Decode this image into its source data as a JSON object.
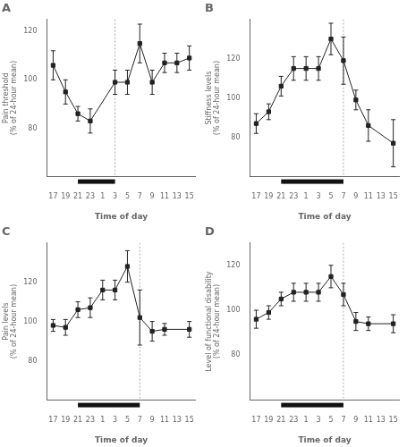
{
  "chart_data": [
    {
      "type": "line",
      "title": "A",
      "xlabel": "Time of day",
      "ylabel": "Pain threshold\n(% of 24-hour mean)",
      "categories": [
        "17",
        "19",
        "21",
        "23",
        "1",
        "3",
        "5",
        "7",
        "9",
        "11",
        "13",
        "15"
      ],
      "values": [
        106,
        95,
        86,
        83,
        null,
        99,
        99,
        115,
        99,
        107,
        107,
        109
      ],
      "errors": [
        6,
        5,
        3,
        5,
        null,
        5,
        5,
        8,
        5,
        4,
        4,
        5
      ],
      "vline": "3",
      "sleep_bar": [
        "21",
        "3"
      ],
      "ylim": [
        60,
        125
      ],
      "yticks": [
        80,
        100,
        120
      ],
      "grid": false,
      "color": "#222222",
      "marker": "square"
    },
    {
      "type": "line",
      "title": "B",
      "xlabel": "Time of day",
      "ylabel": "Stiffness levels\n(% of 24-hour mean)",
      "categories": [
        "17",
        "19",
        "21",
        "23",
        "1",
        "3",
        "5",
        "7",
        "9",
        "11",
        "13",
        "15"
      ],
      "values": [
        87,
        93,
        106,
        115,
        115,
        115,
        130,
        119,
        99,
        86,
        null,
        77
      ],
      "errors": [
        5,
        4,
        5,
        6,
        6,
        6,
        8,
        12,
        5,
        8,
        null,
        12
      ],
      "vline": "7",
      "sleep_bar": [
        "21",
        "7"
      ],
      "ylim": [
        60,
        140
      ],
      "yticks": [
        80,
        100,
        120
      ],
      "grid": false,
      "color": "#222222",
      "marker": "square"
    },
    {
      "type": "line",
      "title": "C",
      "xlabel": "Time of day",
      "ylabel": "Pain levels\n(% of 24-hour mean)",
      "categories": [
        "17",
        "19",
        "21",
        "23",
        "1",
        "3",
        "5",
        "7",
        "9",
        "11",
        "13",
        "15"
      ],
      "values": [
        98,
        97,
        106,
        107,
        116,
        116,
        128,
        102,
        95,
        96,
        null,
        96
      ],
      "errors": [
        3,
        4,
        4,
        5,
        5,
        5,
        8,
        14,
        5,
        3,
        null,
        4
      ],
      "vline": "7",
      "sleep_bar": [
        "21",
        "7"
      ],
      "ylim": [
        60,
        140
      ],
      "yticks": [
        80,
        100,
        120
      ],
      "grid": false,
      "color": "#222222",
      "marker": "square"
    },
    {
      "type": "line",
      "title": "D",
      "xlabel": "Time of day",
      "ylabel": "Level of functional disability\n(% of 24-hour mean)",
      "categories": [
        "17",
        "19",
        "21",
        "23",
        "1",
        "3",
        "5",
        "7",
        "9",
        "11",
        "13",
        "15"
      ],
      "values": [
        96,
        99,
        105,
        108,
        108,
        108,
        115,
        107,
        95,
        94,
        null,
        94
      ],
      "errors": [
        4,
        3,
        3,
        4,
        4,
        4,
        5,
        5,
        4,
        3,
        null,
        4
      ],
      "vline": "7",
      "sleep_bar": [
        "21",
        "7"
      ],
      "ylim": [
        60,
        130
      ],
      "yticks": [
        80,
        100,
        120
      ],
      "grid": false,
      "color": "#222222",
      "marker": "square"
    }
  ]
}
